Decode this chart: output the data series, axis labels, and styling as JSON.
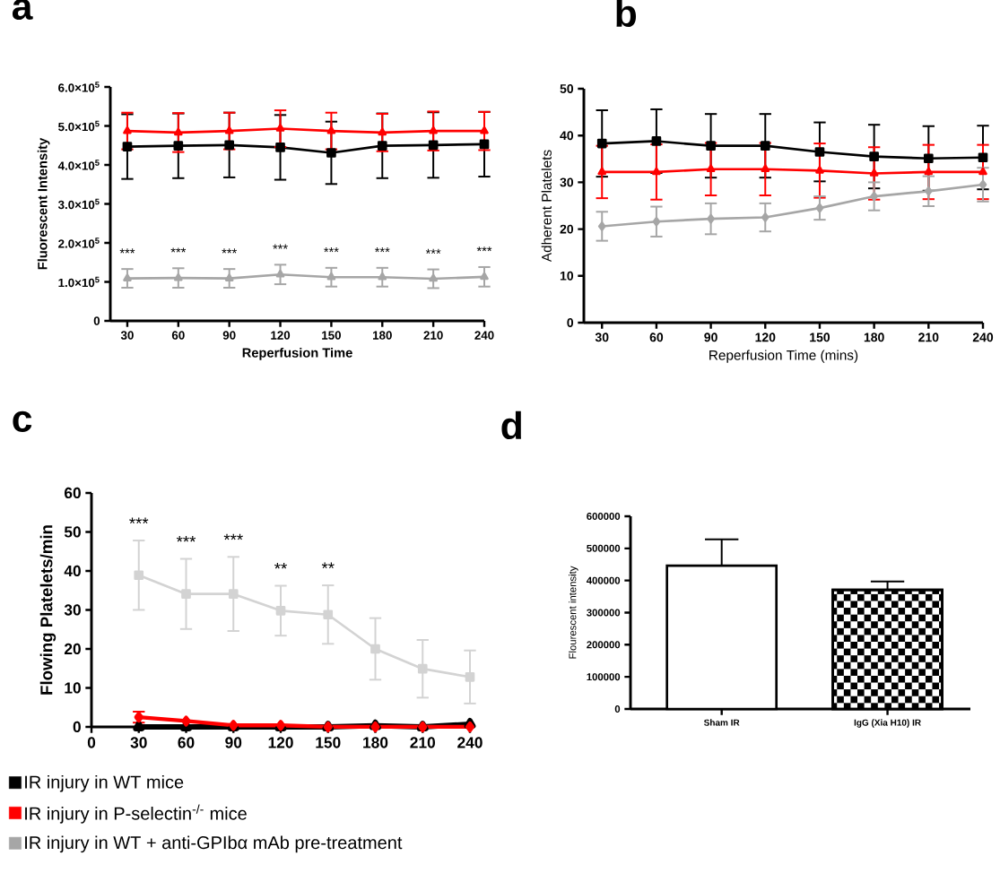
{
  "chart_data": [
    {
      "type": "line",
      "title": "a",
      "xlabel": "Reperfusion Time",
      "ylabel": "Fluorescent Intensity",
      "x": [
        30,
        60,
        90,
        120,
        150,
        180,
        210,
        240
      ],
      "xlim": [
        20,
        240
      ],
      "xticks": [
        30,
        60,
        90,
        120,
        150,
        180,
        210,
        240
      ],
      "ylim": [
        0,
        600000
      ],
      "yticks": [
        {
          "value": 0,
          "label": "0"
        },
        {
          "value": 100000,
          "label": "1.0×10$^{5}$"
        },
        {
          "value": 200000,
          "label": "2.0×10$^{5}$"
        },
        {
          "value": 300000,
          "label": "3.0×10$^{5}$"
        },
        {
          "value": 400000,
          "label": "4.0×10$^{5}$"
        },
        {
          "value": 500000,
          "label": "5.0×10$^{5}$"
        },
        {
          "value": 600000,
          "label": "6.0×10$^{5}$"
        }
      ],
      "legend": "bottom",
      "series": [
        {
          "name": "IR injury in WT mice",
          "color": "#000000",
          "marker": "square",
          "values": [
            447000,
            449000,
            451000,
            445000,
            431000,
            449000,
            451000,
            453000
          ],
          "errors": [
            83000,
            83000,
            83000,
            83000,
            80000,
            83000,
            84000,
            83000
          ]
        },
        {
          "name": "IR injury in P-selectin$^{-/-}$ mice",
          "color": "#ff0000",
          "marker": "triangle",
          "values": [
            487000,
            483000,
            487000,
            493000,
            487000,
            483000,
            487000,
            487000
          ],
          "errors": [
            47000,
            50000,
            47000,
            47000,
            47000,
            48000,
            50000,
            49000
          ]
        },
        {
          "name": "IR injury in WT + anti-GPIbα mAb pre-treatment",
          "color": "#a6a6a6",
          "marker": "triangle",
          "values": [
            109000,
            110000,
            109000,
            119000,
            112000,
            112000,
            108000,
            113000
          ],
          "errors": [
            24000,
            25000,
            24000,
            25000,
            24000,
            24000,
            24000,
            25000
          ]
        }
      ],
      "annotations": [
        "***",
        "***",
        "***",
        "***",
        "***",
        "***",
        "***",
        "***"
      ]
    },
    {
      "type": "line",
      "title": "b",
      "xlabel": "Reperfusion Time (mins)",
      "ylabel": "Adherent Platelets",
      "x": [
        30,
        60,
        90,
        120,
        150,
        180,
        210,
        240
      ],
      "xlim": [
        20,
        240
      ],
      "xticks": [
        30,
        60,
        90,
        120,
        150,
        180,
        210,
        240
      ],
      "ylim": [
        0,
        50
      ],
      "yticks": [
        0,
        10,
        20,
        30,
        40,
        50
      ],
      "series": [
        {
          "color": "#000000",
          "marker": "square",
          "values": [
            38.3,
            38.8,
            37.8,
            37.8,
            36.5,
            35.5,
            35.1,
            35.3
          ],
          "errors": [
            7.1,
            6.8,
            6.8,
            6.8,
            6.3,
            6.8,
            6.9,
            6.8
          ]
        },
        {
          "color": "#ff0000",
          "marker": "triangle",
          "values": [
            32.2,
            32.2,
            32.8,
            32.8,
            32.5,
            31.9,
            32.2,
            32.2
          ],
          "errors": [
            5.6,
            5.9,
            5.6,
            5.6,
            5.8,
            5.6,
            5.8,
            5.8
          ]
        },
        {
          "color": "#a6a6a6",
          "marker": "diamond",
          "values": [
            20.6,
            21.6,
            22.2,
            22.5,
            24.5,
            27.0,
            28.1,
            29.5
          ],
          "errors": [
            3.1,
            3.2,
            3.3,
            3.0,
            2.5,
            3.0,
            3.2,
            3.6
          ]
        }
      ]
    },
    {
      "type": "line",
      "title": "c",
      "ylabel": "Flowing Platelets/min",
      "x": [
        30,
        60,
        90,
        120,
        150,
        180,
        210,
        240
      ],
      "xlim": [
        0,
        240
      ],
      "xticks": [
        0,
        30,
        60,
        90,
        120,
        150,
        180,
        210,
        240
      ],
      "ylim": [
        0,
        60
      ],
      "yticks": [
        0,
        10,
        20,
        30,
        40,
        50,
        60
      ],
      "series": [
        {
          "color": "#000000",
          "marker": "triangle",
          "values": [
            0,
            0,
            0,
            0,
            0,
            0.3,
            0,
            0.7
          ]
        },
        {
          "color": "#ff0000",
          "marker": "diamond",
          "values": [
            2.5,
            1.5,
            0.4,
            0.4,
            0,
            0,
            0,
            0
          ],
          "errors": [
            1.4,
            null,
            null,
            null,
            null,
            null,
            null,
            null
          ]
        },
        {
          "color": "#d3d3d3",
          "marker": "square",
          "values": [
            38.9,
            34.1,
            34.1,
            29.8,
            28.8,
            20.0,
            14.9,
            12.8
          ],
          "errors": [
            8.9,
            9.0,
            9.5,
            6.4,
            7.5,
            7.9,
            7.4,
            6.8
          ]
        }
      ],
      "annotations": [
        "***",
        "***",
        "***",
        "**",
        "**"
      ]
    },
    {
      "type": "bar",
      "title": "d",
      "ylabel": "Flourescent intensity",
      "categories": [
        "Sham IR",
        "IgG (Xia H10) IR"
      ],
      "values": [
        446000,
        371000
      ],
      "colors": [
        "#ffffff",
        "#000000"
      ],
      "errors": [
        82000,
        26000
      ],
      "ylim": [
        0,
        600000
      ],
      "yticks": [
        0,
        100000,
        200000,
        300000,
        400000,
        500000,
        600000
      ]
    }
  ]
}
